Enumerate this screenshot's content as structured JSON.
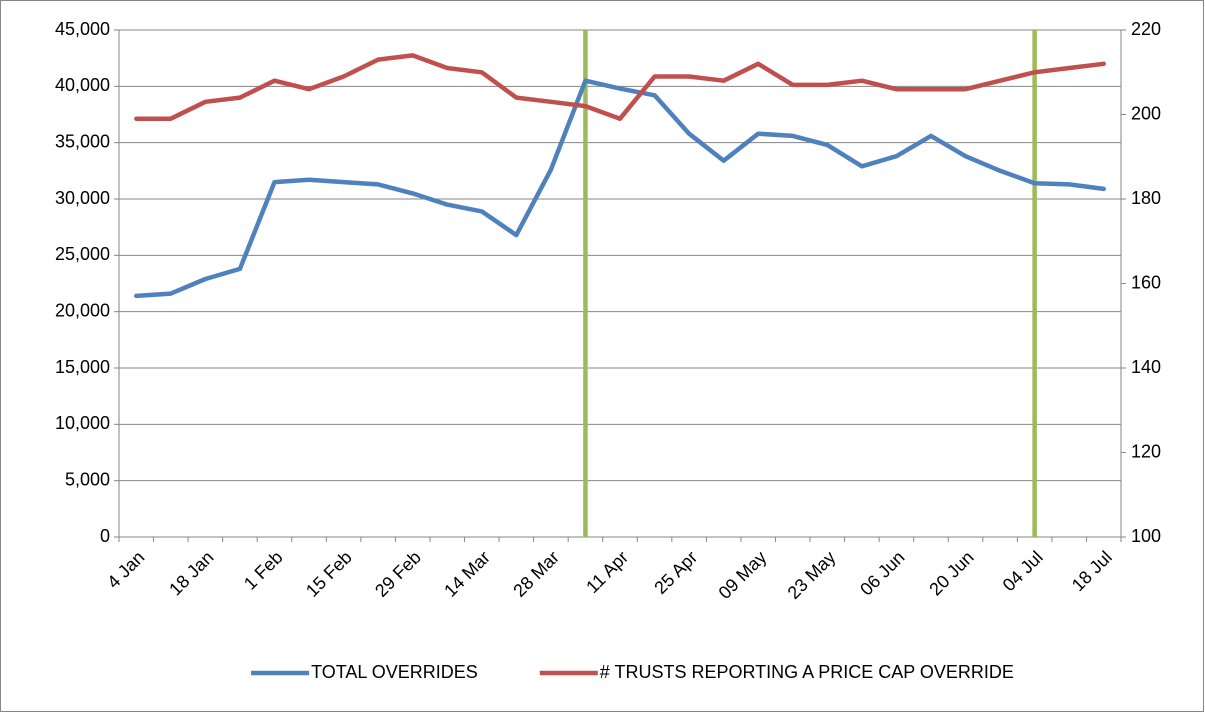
{
  "chart_data": {
    "type": "line",
    "categories": [
      "4 Jan",
      null,
      "18 Jan",
      null,
      "1 Feb",
      null,
      "15 Feb",
      null,
      "29 Feb",
      null,
      "14 Mar",
      null,
      "28 Mar",
      null,
      "11 Apr",
      null,
      "25 Apr",
      null,
      "09 May",
      null,
      "23 May",
      null,
      "06 Jun",
      null,
      "20 Jun",
      null,
      "04 Jul",
      null,
      "18 Jul"
    ],
    "series": [
      {
        "name": "TOTAL OVERRIDES",
        "color": "#4f81bd",
        "values": [
          21400,
          21600,
          22900,
          23800,
          31500,
          31700,
          31500,
          31300,
          30500,
          29500,
          28900,
          26800,
          32600,
          40500,
          39800,
          39200,
          35800,
          33400,
          35800,
          35600,
          34800,
          32900,
          33800,
          35600,
          33800,
          32500,
          31400,
          31300,
          30900
        ]
      },
      {
        "name": "# TRUSTS REPORTING A PRICE CAP OVERRIDE",
        "color": "#c0504d",
        "axis": "y2",
        "values": [
          199,
          199,
          203,
          204,
          208,
          206,
          209,
          213,
          214,
          211,
          210,
          204,
          203,
          202,
          199,
          209,
          209,
          208,
          212,
          207,
          207,
          208,
          206,
          206,
          206,
          208,
          210,
          211,
          212
        ]
      }
    ],
    "ylim": [
      0,
      45000
    ],
    "yticks": [
      0,
      {
        "value": 5000,
        "label": "5,000"
      },
      {
        "value": 10000,
        "label": "10,000"
      },
      {
        "value": 15000,
        "label": "15,000"
      },
      {
        "value": 20000,
        "label": "20,000"
      },
      {
        "value": 25000,
        "label": "25,000"
      },
      {
        "value": 30000,
        "label": "30,000"
      },
      {
        "value": 35000,
        "label": "35,000"
      },
      {
        "value": 40000,
        "label": "40,000"
      },
      {
        "value": 45000,
        "label": "45,000"
      }
    ],
    "y2lim": [
      100,
      220
    ],
    "y2ticks": [
      100,
      120,
      140,
      160,
      180,
      200,
      220
    ],
    "grid": true,
    "legend": "bottom",
    "markers": {
      "color": "#9bbb59",
      "at_category": [
        13,
        26
      ]
    }
  }
}
